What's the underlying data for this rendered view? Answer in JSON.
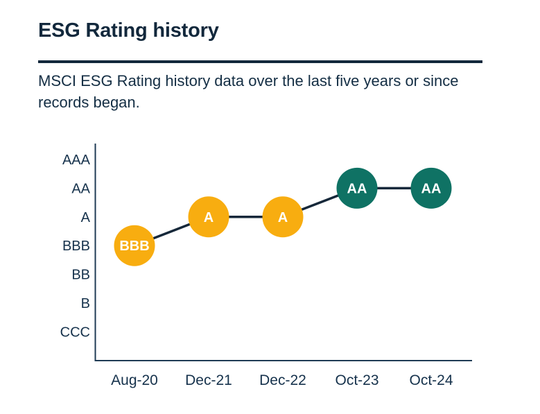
{
  "page": {
    "title": "ESG Rating history",
    "subtitle": "MSCI ESG Rating history data over the last five years or since records began."
  },
  "colors": {
    "title_navy": "#12283c",
    "divider_navy": "#13283c",
    "axis_line": "#1f3b54",
    "axis_text": "#16324c",
    "trend_line": "#16283a",
    "marker_yellow": "#f8ad10",
    "marker_teal": "#0f7264",
    "marker_text": "#ffffff",
    "background": "#ffffff"
  },
  "chart_data": {
    "type": "line",
    "title": "ESG Rating history",
    "x": [
      "Aug-20",
      "Dec-21",
      "Dec-22",
      "Oct-23",
      "Oct-24"
    ],
    "y_categories": [
      "AAA",
      "AA",
      "A",
      "BBB",
      "BB",
      "B",
      "CCC"
    ],
    "series": [
      {
        "name": "MSCI ESG Rating",
        "values": [
          "BBB",
          "A",
          "A",
          "AA",
          "AA"
        ],
        "point_colors": [
          "#f8ad10",
          "#f8ad10",
          "#f8ad10",
          "#0f7264",
          "#0f7264"
        ]
      }
    ],
    "xlabel": "",
    "ylabel": "",
    "grid": false,
    "legend": "none",
    "marker_style": "labeled-circle"
  }
}
